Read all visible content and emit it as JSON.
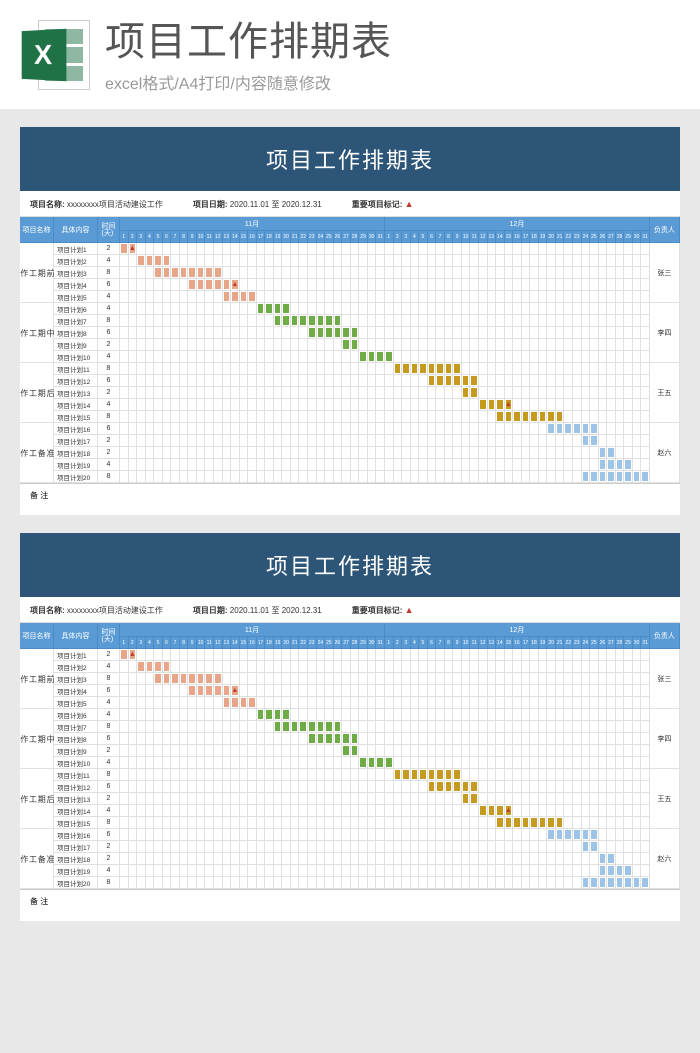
{
  "header": {
    "main_title": "项目工作排期表",
    "sub_title": "excel格式/A4打印/内容随意修改",
    "logo_letter": "X"
  },
  "sheet": {
    "title": "项目工作排期表",
    "meta_project_label": "项目名称:",
    "meta_project_value": "xxxxxxxx项目活动建设工作",
    "meta_date_label": "项目日期:",
    "meta_date_value": "2020.11.01 至 2020.12.31",
    "meta_marker_label": "重要项目标记:",
    "col_phase": "项目名称",
    "col_task": "具体内容",
    "col_duration": "时间\n(天)",
    "col_owner": "负责人",
    "month1": "11月",
    "month2": "12月",
    "remark_label": "备 注",
    "days_per_month": 31,
    "colors": {
      "phase1": "#e8a588",
      "phase2": "#6fac46",
      "phase3": "#c59a1e",
      "phase4": "#9dc3e6",
      "header": "#5a9bd5",
      "title_bg": "#2c5578"
    },
    "phases": [
      {
        "name": "前\n期\n工\n作",
        "owner": "张三",
        "tasks": [
          {
            "label": "项目计划1",
            "duration": 2,
            "start": 0,
            "color": "phase1",
            "flag_at": 1
          },
          {
            "label": "项目计划2",
            "duration": 4,
            "start": 2,
            "color": "phase1"
          },
          {
            "label": "项目计划3",
            "duration": 8,
            "start": 4,
            "color": "phase1"
          },
          {
            "label": "项目计划4",
            "duration": 6,
            "start": 8,
            "color": "phase1",
            "flag_at": 13
          },
          {
            "label": "项目计划5",
            "duration": 4,
            "start": 12,
            "color": "phase1"
          }
        ]
      },
      {
        "name": "中\n期\n工\n作",
        "owner": "李四",
        "tasks": [
          {
            "label": "项目计划6",
            "duration": 4,
            "start": 16,
            "color": "phase2"
          },
          {
            "label": "项目计划7",
            "duration": 8,
            "start": 18,
            "color": "phase2"
          },
          {
            "label": "项目计划8",
            "duration": 6,
            "start": 22,
            "color": "phase2"
          },
          {
            "label": "项目计划9",
            "duration": 2,
            "start": 26,
            "color": "phase2"
          },
          {
            "label": "项目计划10",
            "duration": 4,
            "start": 28,
            "color": "phase2"
          }
        ]
      },
      {
        "name": "后\n期\n工\n作",
        "owner": "王五",
        "tasks": [
          {
            "label": "项目计划11",
            "duration": 8,
            "start": 32,
            "color": "phase3"
          },
          {
            "label": "项目计划12",
            "duration": 6,
            "start": 36,
            "color": "phase3"
          },
          {
            "label": "项目计划13",
            "duration": 2,
            "start": 40,
            "color": "phase3"
          },
          {
            "label": "项目计划14",
            "duration": 4,
            "start": 42,
            "color": "phase3",
            "flag_at": 45
          },
          {
            "label": "项目计划15",
            "duration": 8,
            "start": 44,
            "color": "phase3"
          }
        ]
      },
      {
        "name": "准\n备\n工\n作",
        "owner": "赵六",
        "tasks": [
          {
            "label": "项目计划16",
            "duration": 6,
            "start": 50,
            "color": "phase4"
          },
          {
            "label": "项目计划17",
            "duration": 2,
            "start": 54,
            "color": "phase4"
          },
          {
            "label": "项目计划18",
            "duration": 2,
            "start": 56,
            "color": "phase4"
          },
          {
            "label": "项目计划19",
            "duration": 4,
            "start": 56,
            "color": "phase4"
          },
          {
            "label": "项目计划20",
            "duration": 8,
            "start": 54,
            "color": "phase4"
          }
        ]
      }
    ]
  }
}
